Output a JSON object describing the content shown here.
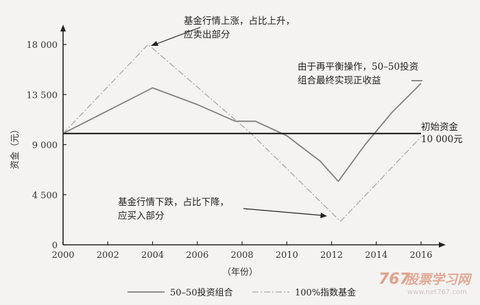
{
  "chart_data": {
    "type": "line",
    "xlabel": "（年份）",
    "ylabel": "资金（元）",
    "xlim": [
      2000,
      2016
    ],
    "ylim": [
      0,
      18000
    ],
    "x_ticks": [
      2000,
      2002,
      2004,
      2006,
      2008,
      2010,
      2012,
      2014,
      2016
    ],
    "y_ticks": [
      0,
      4500,
      9000,
      13500,
      18000
    ],
    "x_tick_labels": [
      "2000",
      "2002",
      "2004",
      "2006",
      "2008",
      "2010",
      "2012",
      "2014",
      "2016"
    ],
    "y_tick_labels": [
      "0",
      "4 500",
      "9 000",
      "13 500",
      "18 000"
    ],
    "series": [
      {
        "name": "50-50投资组合",
        "color": "#808080",
        "style": "solid",
        "points": [
          [
            2000,
            10000
          ],
          [
            2004,
            14100
          ],
          [
            2006,
            12600
          ],
          [
            2007.7,
            11100
          ],
          [
            2008.6,
            11100
          ],
          [
            2010,
            9800
          ],
          [
            2011.5,
            7500
          ],
          [
            2012.3,
            5700
          ],
          [
            2013.5,
            9000
          ],
          [
            2014.7,
            11900
          ],
          [
            2016,
            14500
          ]
        ]
      },
      {
        "name": "100%指数基金",
        "color": "#a8a8a8",
        "style": "dashdot",
        "points": [
          [
            2000,
            10000
          ],
          [
            2003.8,
            18000
          ],
          [
            2008.4,
            10000
          ],
          [
            2012.4,
            2100
          ],
          [
            2016,
            9700
          ]
        ]
      },
      {
        "name": "初始资金",
        "color": "#111111",
        "style": "solid",
        "points": [
          [
            2000,
            10000
          ],
          [
            2016,
            10000
          ]
        ]
      }
    ],
    "annotations": {
      "top": [
        "基金行情上涨，占比上升，",
        "应卖出部分"
      ],
      "right": [
        "由于再平衡操作，50–50投资",
        "组合最终实现正收益"
      ],
      "initial": [
        "初始资金",
        "10 000元"
      ],
      "bottom": [
        "基金行情下跌，占比下降，",
        "应买入部分"
      ]
    }
  },
  "legend": [
    "50–50投资组合",
    "100%指数基金"
  ],
  "watermark": {
    "left": "767",
    "right": "股票学习网",
    "url": "www.net767.com"
  }
}
